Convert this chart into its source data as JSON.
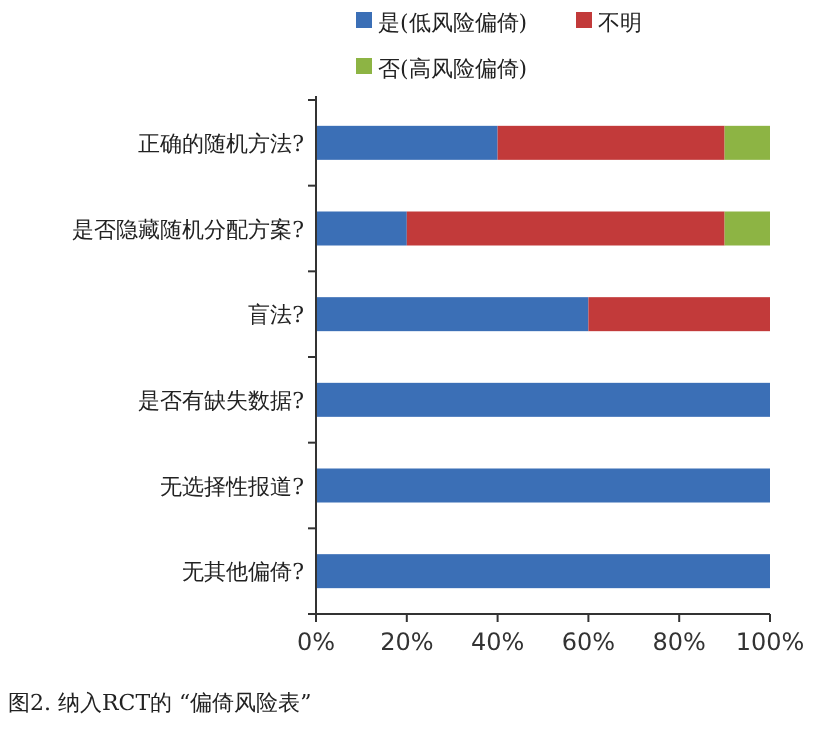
{
  "chart_data": {
    "type": "bar",
    "orientation": "horizontal",
    "stacked": true,
    "categories": [
      "正确的随机方法?",
      "是否隐藏随机分配方案?",
      "盲法?",
      "是否有缺失数据?",
      "无选择性报道?",
      "无其他偏倚?"
    ],
    "series": [
      {
        "name": "是(低风险偏倚)",
        "color": "#3b6fb6",
        "values": [
          40,
          20,
          60,
          100,
          100,
          100
        ]
      },
      {
        "name": "不明",
        "color": "#c23a3a",
        "values": [
          50,
          70,
          40,
          0,
          0,
          0
        ]
      },
      {
        "name": "否(高风险偏倚)",
        "color": "#8db444",
        "values": [
          10,
          10,
          0,
          0,
          0,
          0
        ]
      }
    ],
    "xlim": [
      0,
      100
    ],
    "xticks": [
      {
        "value": 0,
        "label": "0%"
      },
      {
        "value": 20,
        "label": "20%"
      },
      {
        "value": 40,
        "label": "40%"
      },
      {
        "value": 60,
        "label": "60%"
      },
      {
        "value": 80,
        "label": "80%"
      },
      {
        "value": 100,
        "label": "100%"
      }
    ],
    "legend": "top",
    "annotations": [
      "图2.  纳入RCT的 “偏倚风险表”"
    ]
  }
}
